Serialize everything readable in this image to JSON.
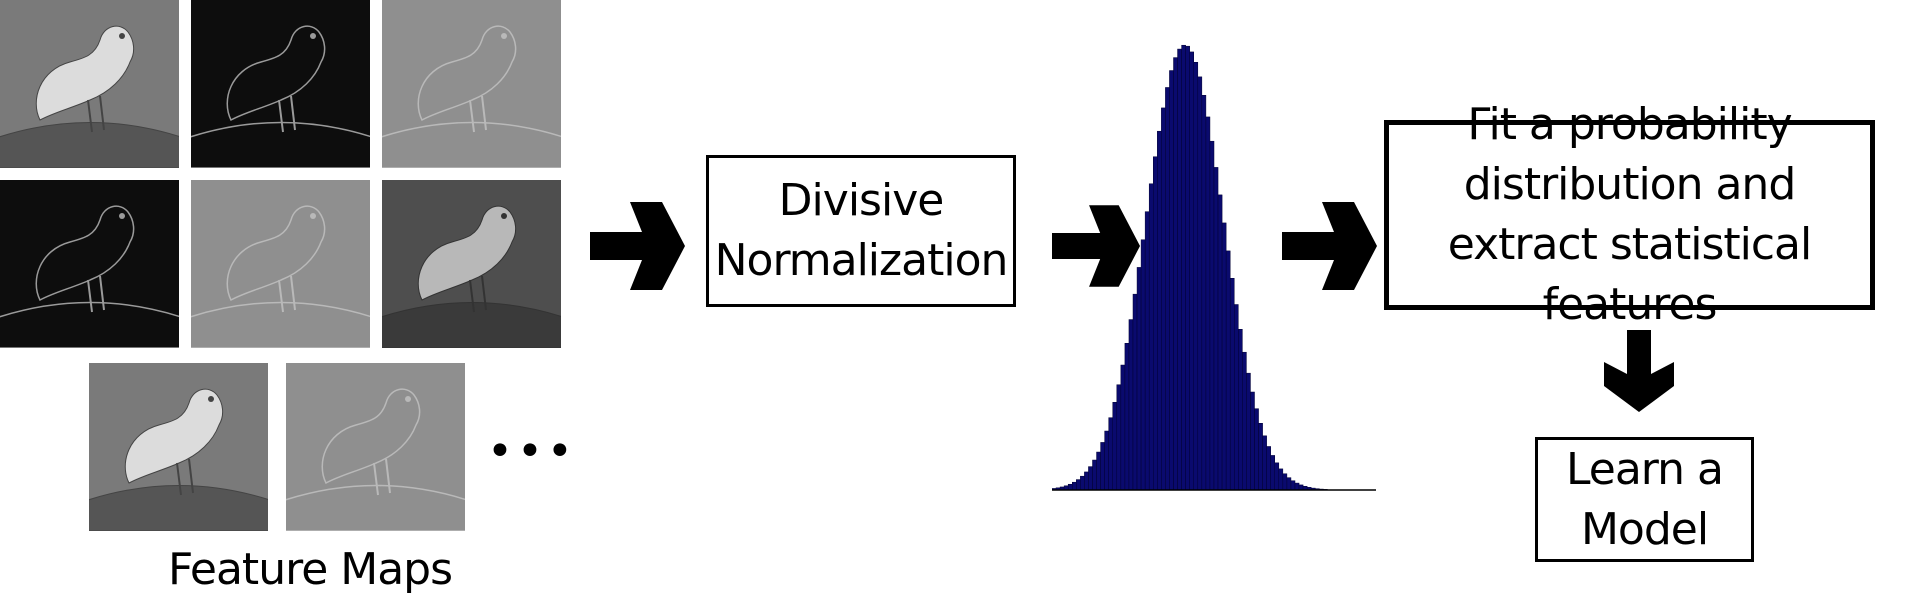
{
  "diagram": {
    "feature_maps_label": "Feature Maps",
    "ellipsis": "•••",
    "normalization_box": {
      "line1": "Divisive",
      "line2": "Normalization"
    },
    "fit_box": {
      "line1": "Fit a probability",
      "line2": "distribution and",
      "line3": "extract statistical features"
    },
    "model_box": {
      "line1": "Learn a",
      "line2": "Model"
    },
    "histogram_color": "#0a0a6e",
    "thumbnails": [
      {
        "name": "feature-map-grayscale-1",
        "style": "photo"
      },
      {
        "name": "feature-map-edges-dark-1",
        "style": "dark-edges"
      },
      {
        "name": "feature-map-gray-edges-1",
        "style": "gray-edges"
      },
      {
        "name": "feature-map-edges-dark-2",
        "style": "dark-edges"
      },
      {
        "name": "feature-map-gray-edges-2",
        "style": "gray-edges"
      },
      {
        "name": "feature-map-grayscale-2",
        "style": "photo-dark"
      },
      {
        "name": "feature-map-grayscale-3",
        "style": "photo"
      },
      {
        "name": "feature-map-gray-edges-3",
        "style": "gray-edges"
      }
    ]
  }
}
